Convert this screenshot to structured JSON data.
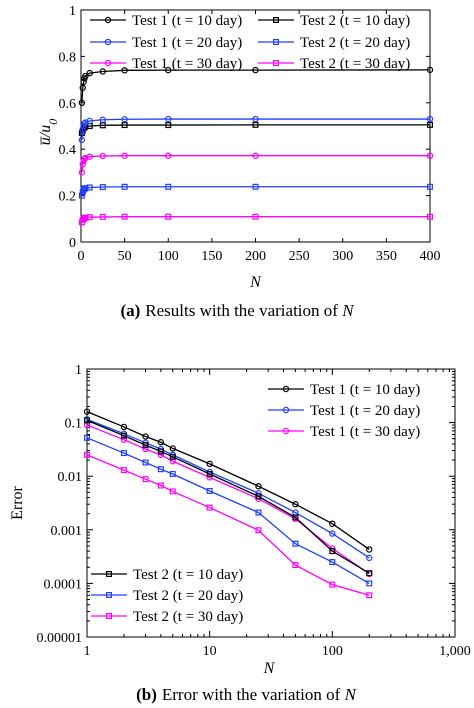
{
  "figure": {
    "caption_a": {
      "tag": "(a)",
      "text": "Results with the variation of ",
      "var": "N"
    },
    "caption_b": {
      "tag": "(b)",
      "text": "Error with the variation of ",
      "var": "N"
    }
  },
  "chart_data": [
    {
      "type": "line",
      "title": "",
      "xlabel": "N",
      "ylabel": "ū/u₀",
      "ylabel_main": "u̅/u",
      "ylabel_sub": "0",
      "xlim": [
        0,
        400
      ],
      "ylim": [
        0,
        1
      ],
      "xticks": [
        0,
        50,
        100,
        150,
        200,
        250,
        300,
        350,
        400
      ],
      "yticks": [
        0,
        0.2,
        0.4,
        0.6,
        0.8,
        1
      ],
      "ytick_labels": [
        "0",
        "0.2",
        "0.4",
        "0.6",
        "0.8",
        "1"
      ],
      "grid": false,
      "legend_position": "top",
      "series": [
        {
          "name": "Test 1 (t = 10 day)",
          "color": "#000000",
          "marker": "circle",
          "x": [
            1,
            2,
            3,
            4,
            5,
            10,
            25,
            50,
            100,
            200,
            400
          ],
          "y": [
            0.6,
            0.665,
            0.69,
            0.705,
            0.715,
            0.728,
            0.735,
            0.74,
            0.741,
            0.741,
            0.742
          ]
        },
        {
          "name": "Test 2 (t = 10 day)",
          "color": "#000000",
          "marker": "square",
          "x": [
            1,
            2,
            3,
            4,
            5,
            10,
            25,
            50,
            100,
            200,
            400
          ],
          "y": [
            0.47,
            0.48,
            0.49,
            0.495,
            0.497,
            0.5,
            0.503,
            0.504,
            0.504,
            0.505,
            0.505
          ]
        },
        {
          "name": "Test 1 (t = 20 day)",
          "color": "#1f3fff",
          "marker": "circle",
          "x": [
            1,
            2,
            3,
            4,
            5,
            10,
            25,
            50,
            100,
            200,
            400
          ],
          "y": [
            0.44,
            0.48,
            0.5,
            0.51,
            0.515,
            0.522,
            0.527,
            0.529,
            0.53,
            0.53,
            0.53
          ]
        },
        {
          "name": "Test 2 (t = 20 day)",
          "color": "#1f3fff",
          "marker": "square",
          "x": [
            1,
            2,
            3,
            4,
            5,
            10,
            25,
            50,
            100,
            200,
            400
          ],
          "y": [
            0.2,
            0.215,
            0.225,
            0.23,
            0.232,
            0.235,
            0.237,
            0.238,
            0.238,
            0.238,
            0.238
          ]
        },
        {
          "name": "Test 1 (t = 30 day)",
          "color": "#ff00ff",
          "marker": "circle",
          "x": [
            1,
            2,
            3,
            4,
            5,
            10,
            25,
            50,
            100,
            200,
            400
          ],
          "y": [
            0.3,
            0.335,
            0.35,
            0.358,
            0.362,
            0.368,
            0.371,
            0.372,
            0.372,
            0.372,
            0.372
          ]
        },
        {
          "name": "Test 2 (t = 30 day)",
          "color": "#ff00ff",
          "marker": "square",
          "x": [
            1,
            2,
            3,
            4,
            5,
            10,
            25,
            50,
            100,
            200,
            400
          ],
          "y": [
            0.085,
            0.095,
            0.1,
            0.103,
            0.105,
            0.107,
            0.108,
            0.109,
            0.109,
            0.109,
            0.109
          ]
        }
      ]
    },
    {
      "type": "line",
      "title": "",
      "xlabel": "N",
      "ylabel": "Error",
      "xscale": "log",
      "yscale": "log",
      "xlim": [
        1,
        1000
      ],
      "ylim": [
        1e-05,
        1
      ],
      "xticks": [
        1,
        10,
        100,
        1000
      ],
      "xtick_labels": [
        "1",
        "10",
        "100",
        "1,000"
      ],
      "yticks": [
        1,
        0.1,
        0.01,
        0.001,
        0.0001,
        1e-05
      ],
      "ytick_labels": [
        "1",
        "0.1",
        "0.01",
        "0.001",
        "0.0001",
        "0.00001"
      ],
      "grid": false,
      "legend_position": "top-right and bottom-left",
      "series": [
        {
          "name": "Test 1 (t = 10 day)",
          "color": "#000000",
          "marker": "circle",
          "x": [
            1,
            2,
            3,
            4,
            5,
            10,
            25,
            50,
            100,
            200
          ],
          "y": [
            0.16,
            0.083,
            0.055,
            0.043,
            0.033,
            0.017,
            0.0065,
            0.003,
            0.0013,
            0.00043
          ]
        },
        {
          "name": "Test 1 (t = 20 day)",
          "color": "#1f3fff",
          "marker": "circle",
          "x": [
            1,
            2,
            3,
            4,
            5,
            10,
            25,
            50,
            100,
            200
          ],
          "y": [
            0.115,
            0.062,
            0.042,
            0.032,
            0.025,
            0.012,
            0.0048,
            0.0021,
            0.00085,
            0.0003
          ]
        },
        {
          "name": "Test 1 (t = 30 day)",
          "color": "#ff00ff",
          "marker": "circle",
          "x": [
            1,
            2,
            3,
            4,
            5,
            10,
            25,
            50,
            100,
            200
          ],
          "y": [
            0.09,
            0.048,
            0.032,
            0.025,
            0.019,
            0.0095,
            0.0038,
            0.0016,
            0.00045,
            0.00015
          ]
        },
        {
          "name": "Test 2 (t = 10 day)",
          "color": "#000000",
          "marker": "square",
          "x": [
            1,
            2,
            3,
            4,
            5,
            10,
            25,
            50,
            100,
            200
          ],
          "y": [
            0.11,
            0.057,
            0.038,
            0.029,
            0.023,
            0.011,
            0.0042,
            0.0017,
            0.0004,
            0.000155
          ]
        },
        {
          "name": "Test 2 (t = 20 day)",
          "color": "#1f3fff",
          "marker": "square",
          "x": [
            1,
            2,
            3,
            4,
            5,
            10,
            25,
            50,
            100,
            200
          ],
          "y": [
            0.052,
            0.027,
            0.018,
            0.0135,
            0.011,
            0.0053,
            0.0021,
            0.00055,
            0.00025,
            0.0001
          ]
        },
        {
          "name": "Test 2 (t = 30 day)",
          "color": "#ff00ff",
          "marker": "square",
          "x": [
            1,
            2,
            3,
            4,
            5,
            10,
            25,
            50,
            100,
            200
          ],
          "y": [
            0.025,
            0.013,
            0.0088,
            0.0067,
            0.0052,
            0.0026,
            0.00098,
            0.00022,
            9.5e-05,
            6e-05
          ]
        }
      ]
    }
  ]
}
